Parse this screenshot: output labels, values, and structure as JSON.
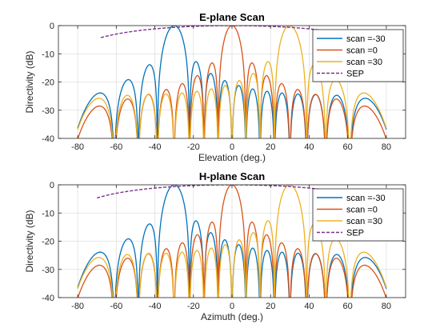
{
  "colors": {
    "scan_neg30": "#0072BD",
    "scan_0": "#D95319",
    "scan_30": "#EDB120",
    "sep": "#7E2F8E",
    "grid": "#dfdfdf",
    "axis": "#262626"
  },
  "chart_data": [
    {
      "type": "line",
      "title": "E-plane Scan",
      "xlabel": "Elevation (deg.)",
      "ylabel": "Directivity (dB)",
      "xlim": [
        -90,
        90
      ],
      "ylim": [
        -40,
        0
      ],
      "xticks": [
        "-80",
        "-60",
        "-40",
        "-20",
        "0",
        "20",
        "40",
        "60",
        "80"
      ],
      "yticks": [
        "0",
        "-10",
        "-20",
        "-30",
        "-40"
      ],
      "grid": true,
      "legend_position": "top-right",
      "x_range": [
        -80,
        80
      ],
      "series": [
        {
          "name": "scan =-30",
          "scan": -30,
          "style": "solid"
        },
        {
          "name": "scan =0",
          "scan": 0,
          "style": "solid"
        },
        {
          "name": "scan =30",
          "scan": 30,
          "style": "solid"
        },
        {
          "name": "SEP",
          "style": "dashed",
          "x_range": [
            -68,
            67
          ]
        }
      ]
    },
    {
      "type": "line",
      "title": "H-plane Scan",
      "xlabel": "Azimuth (deg.)",
      "ylabel": "Directivity (dB)",
      "xlim": [
        -90,
        90
      ],
      "ylim": [
        -40,
        0
      ],
      "xticks": [
        "-80",
        "-60",
        "-40",
        "-20",
        "0",
        "20",
        "40",
        "60",
        "80"
      ],
      "yticks": [
        "0",
        "-10",
        "-20",
        "-30",
        "-40"
      ],
      "grid": true,
      "legend_position": "top-right",
      "x_range": [
        -80,
        80
      ],
      "series": [
        {
          "name": "scan =-30",
          "scan": -30,
          "style": "solid"
        },
        {
          "name": "scan =0",
          "scan": 0,
          "style": "solid"
        },
        {
          "name": "scan =30",
          "scan": 30,
          "style": "solid"
        },
        {
          "name": "SEP",
          "style": "dashed",
          "x_range": [
            -70,
            72
          ]
        }
      ]
    }
  ]
}
